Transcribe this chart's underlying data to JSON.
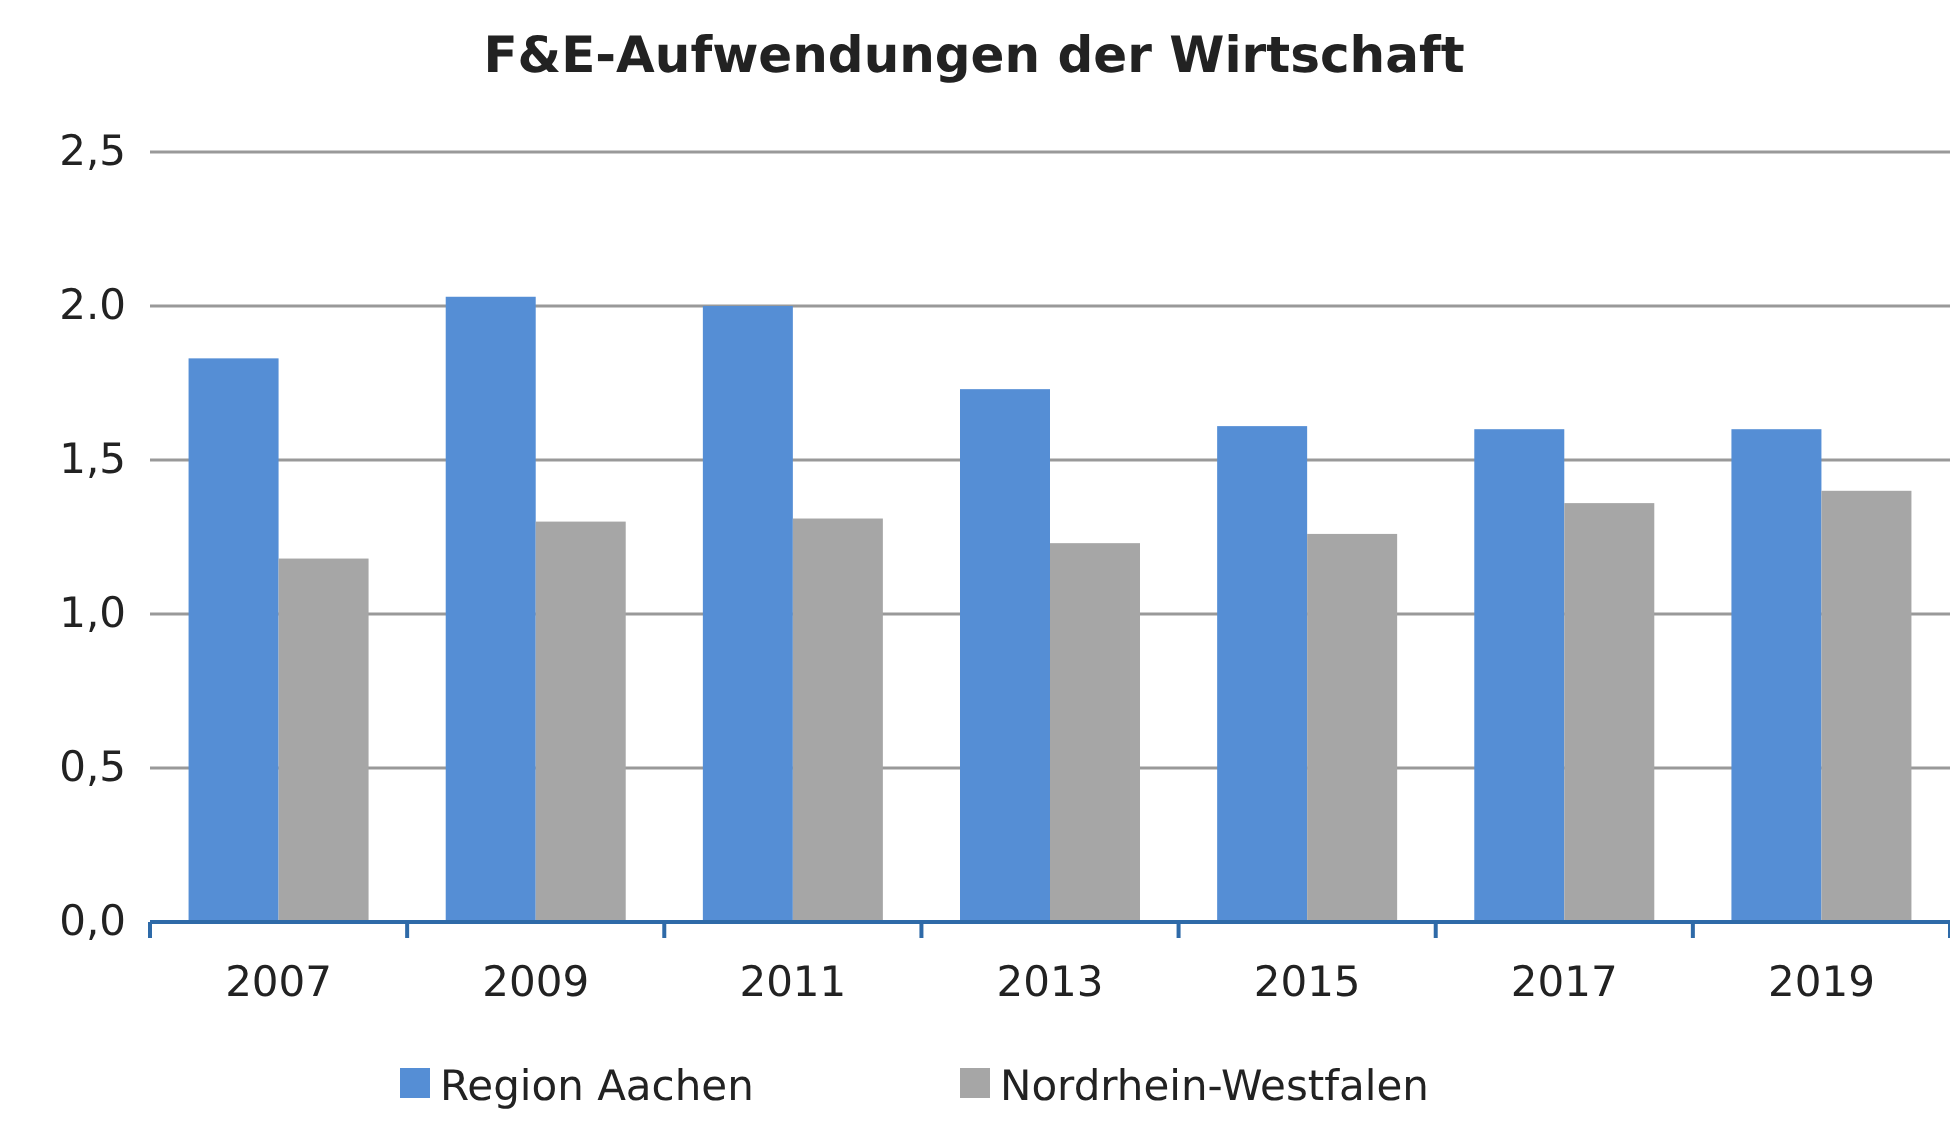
{
  "chart_data": {
    "type": "bar",
    "title": "F&E-Aufwendungen der Wirtschaft",
    "categories": [
      "2007",
      "2009",
      "2011",
      "2013",
      "2015",
      "2017",
      "2019"
    ],
    "series": [
      {
        "name": "Region Aachen",
        "color": "#558ed5",
        "values": [
          1.83,
          2.03,
          2.0,
          1.73,
          1.61,
          1.6,
          1.6
        ]
      },
      {
        "name": "Nordrhein-Westfalen",
        "color": "#a6a6a6",
        "values": [
          1.18,
          1.3,
          1.31,
          1.23,
          1.26,
          1.36,
          1.4
        ]
      }
    ],
    "ylim": [
      0,
      2.5
    ],
    "yticks": [
      {
        "value": 0,
        "label": "0,0"
      },
      {
        "value": 0.5,
        "label": "0,5"
      },
      {
        "value": 1,
        "label": "1,0"
      },
      {
        "value": 1.5,
        "label": "1,5"
      },
      {
        "value": 2,
        "label": "2.0"
      },
      {
        "value": 2.5,
        "label": "2,5"
      }
    ],
    "grid": "y",
    "legend": "bottom"
  }
}
